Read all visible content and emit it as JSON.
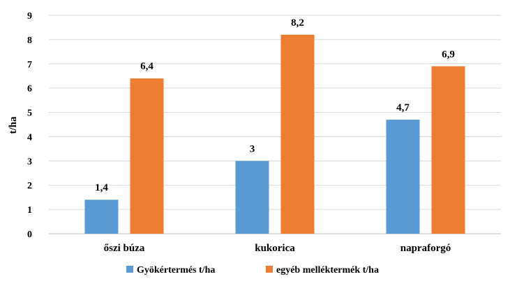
{
  "chart_data": {
    "type": "bar",
    "categories": [
      "őszi búza",
      "kukorica",
      "napraforgó"
    ],
    "series": [
      {
        "name": "Gyökértermés t/ha",
        "values": [
          1.4,
          3,
          4.7
        ],
        "labels": [
          "1,4",
          "3",
          "4,7"
        ],
        "color": "#5B9BD5"
      },
      {
        "name": "egyéb melléktermék t/ha",
        "values": [
          6.4,
          8.2,
          6.9
        ],
        "labels": [
          "6,4",
          "8,2",
          "6,9"
        ],
        "color": "#ED7D31"
      }
    ],
    "ylabel": "t/ha",
    "xlabel": "",
    "title": "",
    "ylim": [
      0,
      9
    ],
    "yticks": [
      "0",
      "1",
      "2",
      "3",
      "4",
      "5",
      "6",
      "7",
      "8",
      "9"
    ],
    "grid": true,
    "gridColor": "#D9D9D9",
    "legend": "bottom"
  }
}
